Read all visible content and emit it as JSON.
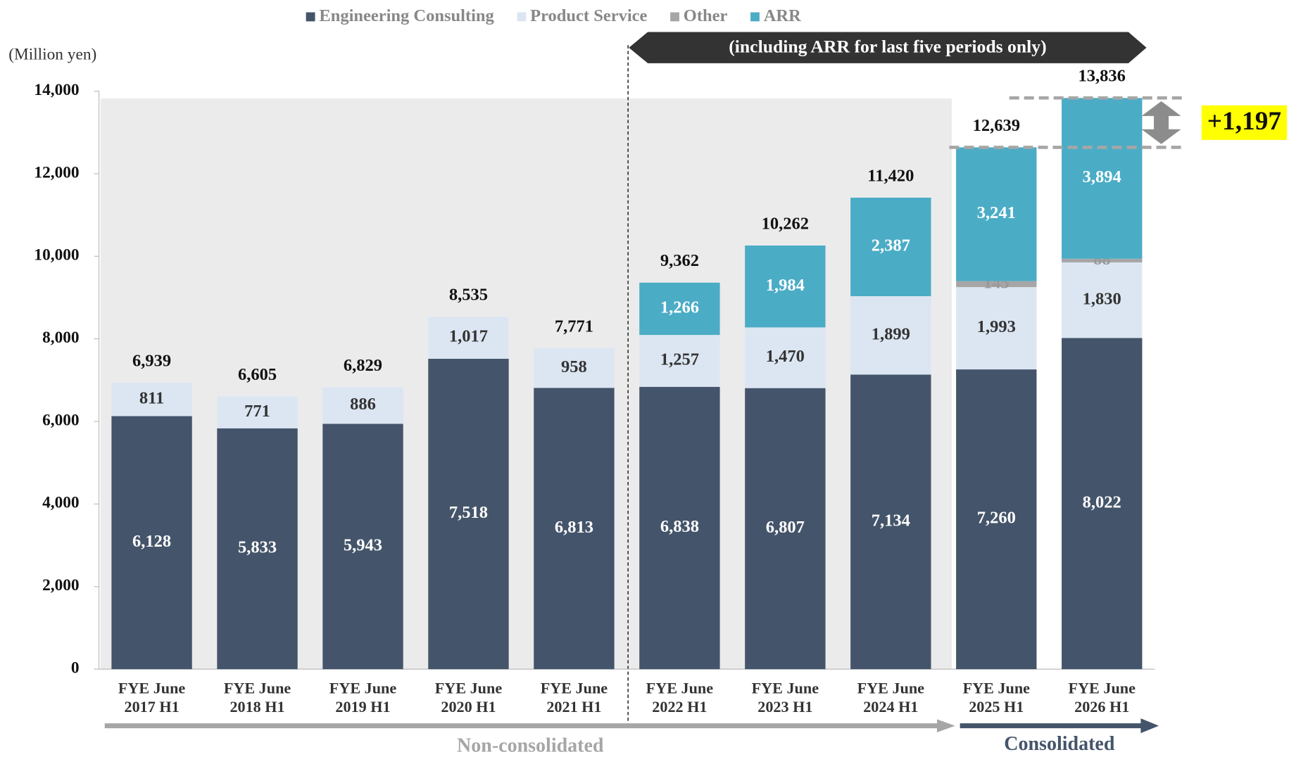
{
  "chart_data": {
    "type": "stacked_bar",
    "y_axis_label": "(Million yen)",
    "annotations": {
      "arr_note": "(including ARR for last five periods only)",
      "increase": "+1,197",
      "non_consolidated": "Non-consolidated",
      "consolidated": "Consolidated"
    },
    "categories": [
      [
        "FYE June",
        "2017 H1"
      ],
      [
        "FYE June",
        "2018 H1"
      ],
      [
        "FYE June",
        "2019 H1"
      ],
      [
        "FYE June",
        "2020 H1"
      ],
      [
        "FYE June",
        "2021 H1"
      ],
      [
        "FYE June",
        "2022 H1"
      ],
      [
        "FYE June",
        "2023 H1"
      ],
      [
        "FYE June",
        "2024 H1"
      ],
      [
        "FYE June",
        "2025 H1"
      ],
      [
        "FYE June",
        "2026 H1"
      ]
    ],
    "series": [
      {
        "name": "Engineering Consulting",
        "color": "#44546a",
        "label_color": "#ffffff",
        "values": [
          6128,
          5833,
          5943,
          7518,
          6813,
          6838,
          6807,
          7134,
          7260,
          8022
        ],
        "value_labels": [
          "6,128",
          "5,833",
          "5,943",
          "7,518",
          "6,813",
          "6,838",
          "6,807",
          "7,134",
          "7,260",
          "8,022"
        ]
      },
      {
        "name": "Product Service",
        "color": "#dce6f2",
        "label_color": "#333333",
        "values": [
          811,
          771,
          886,
          1017,
          958,
          1257,
          1470,
          1899,
          1993,
          1830
        ],
        "value_labels": [
          "811",
          "771",
          "886",
          "1,017",
          "958",
          "1,257",
          "1,470",
          "1,899",
          "1,993",
          "1,830"
        ]
      },
      {
        "name": "Other",
        "color": "#a6a6a6",
        "label_color": "#999999",
        "values": [
          null,
          null,
          null,
          null,
          null,
          null,
          null,
          null,
          145,
          88
        ],
        "value_labels": [
          null,
          null,
          null,
          null,
          null,
          null,
          null,
          null,
          "145",
          "88"
        ]
      },
      {
        "name": "ARR",
        "color": "#4bacc6",
        "label_color": "#ffffff",
        "values": [
          null,
          null,
          null,
          null,
          null,
          1266,
          1984,
          2387,
          3241,
          3894
        ],
        "value_labels": [
          null,
          null,
          null,
          null,
          null,
          "1,266",
          "1,984",
          "2,387",
          "3,241",
          "3,894"
        ]
      }
    ],
    "totals": {
      "values": [
        6939,
        6605,
        6829,
        8535,
        7771,
        9362,
        10262,
        11420,
        12639,
        13836
      ],
      "value_labels": [
        "6,939",
        "6,605",
        "6,829",
        "8,535",
        "7,771",
        "9,362",
        "10,262",
        "11,420",
        "12,639",
        "13,836"
      ]
    },
    "ylim": [
      0,
      14000
    ],
    "yticks": [
      0,
      {
        "value": 2000,
        "label": "2,000"
      },
      {
        "value": 4000,
        "label": "4,000"
      },
      {
        "value": 6000,
        "label": "6,000"
      },
      {
        "value": 8000,
        "label": "8,000"
      },
      {
        "value": 10000,
        "label": "10,000"
      },
      {
        "value": 12000,
        "label": "12,000"
      },
      {
        "value": 14000,
        "label": "14,000"
      }
    ]
  }
}
